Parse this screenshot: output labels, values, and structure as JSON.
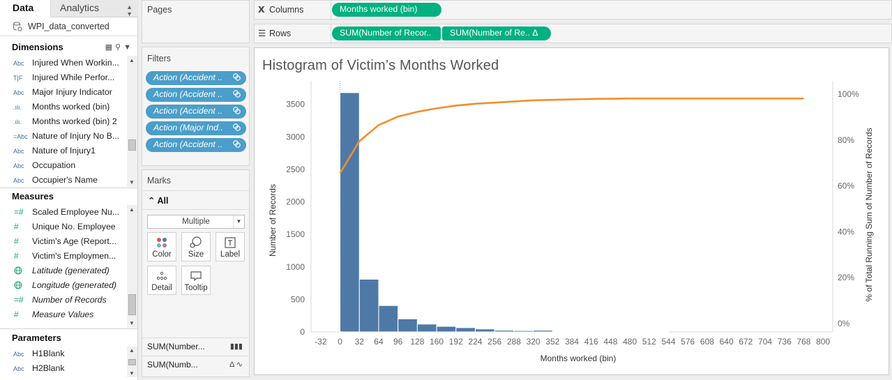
{
  "tabs": {
    "data": "Data",
    "analytics": "Analytics"
  },
  "datasource": "WPI_data_converted",
  "dimensions": {
    "title": "Dimensions",
    "items": [
      {
        "type": "Abc",
        "label": "Injured When Workin..."
      },
      {
        "type": "T|F",
        "label": "Injured While Perfor..."
      },
      {
        "type": "Abc",
        "label": "Major Injury Indicator"
      },
      {
        "type": ".ılı.",
        "label": "Months worked (bin)"
      },
      {
        "type": ".ılı.",
        "label": "Months worked (bin) 2"
      },
      {
        "type": "=Abc",
        "label": "Nature of Injury No B..."
      },
      {
        "type": "Abc",
        "label": "Nature of Injury1"
      },
      {
        "type": "Abc",
        "label": "Occupation"
      },
      {
        "type": "Abc",
        "label": "Occupier's Name"
      }
    ]
  },
  "measures": {
    "title": "Measures",
    "items": [
      {
        "type": "=#",
        "label": "Scaled Employee Nu..."
      },
      {
        "type": "#",
        "label": "Unique No. Employee"
      },
      {
        "type": "#",
        "label": "Victim's Age (Report..."
      },
      {
        "type": "#",
        "label": "Victim's Employmen..."
      },
      {
        "type": "globe",
        "label": "Latitude (generated)"
      },
      {
        "type": "globe",
        "label": "Longitude (generated)"
      },
      {
        "type": "=#",
        "label": "Number of Records"
      },
      {
        "type": "#",
        "label": "Measure Values"
      }
    ]
  },
  "parameters": {
    "title": "Parameters",
    "items": [
      {
        "type": "Abc",
        "label": "H1Blank"
      },
      {
        "type": "Abc",
        "label": "H2Blank"
      }
    ]
  },
  "pages": {
    "title": "Pages"
  },
  "filters": {
    "title": "Filters",
    "pills": [
      "Action (Accident ..",
      "Action (Accident ..",
      "Action (Accident ..",
      "Action (Major Ind..",
      "Action (Accident .."
    ]
  },
  "marks": {
    "title": "Marks",
    "all_label": "All",
    "mark_type": "Multiple",
    "buttons": {
      "color": "Color",
      "size": "Size",
      "label": "Label",
      "detail": "Detail",
      "tooltip": "Tooltip"
    },
    "shelves": [
      "SUM(Number...",
      "SUM(Numb..."
    ]
  },
  "columns": {
    "label": "Columns",
    "pills": [
      "Months worked (bin)"
    ]
  },
  "rows": {
    "label": "Rows",
    "pills": [
      "SUM(Number of Recor..",
      "SUM(Number of Re.. Δ"
    ]
  },
  "chart_data": {
    "type": "bar",
    "title": "Histogram of Victim’s Months Worked",
    "xlabel": "Months worked (bin)",
    "ylabel": "Number of Records",
    "y2label": "% of Total Running Sum of Number of Records",
    "bin_size": 32,
    "x_ticks": [
      -32,
      0,
      32,
      64,
      96,
      128,
      160,
      192,
      224,
      256,
      288,
      320,
      352,
      384,
      416,
      448,
      480,
      512,
      544,
      576,
      608,
      640,
      672,
      704,
      736,
      768,
      800
    ],
    "y_ticks": [
      0,
      500,
      1000,
      1500,
      2000,
      2500,
      3000,
      3500
    ],
    "y2_ticks": [
      "0%",
      "20%",
      "40%",
      "60%",
      "80%",
      "100%"
    ],
    "xlim": [
      -48,
      816
    ],
    "ylim": [
      0,
      3700
    ],
    "bars": [
      {
        "bin": 0,
        "value": 3680
      },
      {
        "bin": 32,
        "value": 810
      },
      {
        "bin": 64,
        "value": 405
      },
      {
        "bin": 96,
        "value": 200
      },
      {
        "bin": 128,
        "value": 120
      },
      {
        "bin": 160,
        "value": 85
      },
      {
        "bin": 192,
        "value": 65
      },
      {
        "bin": 224,
        "value": 45
      },
      {
        "bin": 256,
        "value": 25
      },
      {
        "bin": 288,
        "value": 20
      },
      {
        "bin": 320,
        "value": 25
      },
      {
        "bin": 352,
        "value": 10
      },
      {
        "bin": 384,
        "value": 5
      },
      {
        "bin": 416,
        "value": 8
      },
      {
        "bin": 448,
        "value": 4
      },
      {
        "bin": 480,
        "value": 3
      },
      {
        "bin": 512,
        "value": 2
      }
    ],
    "running_pct": {
      "x": [
        0,
        32,
        64,
        96,
        128,
        160,
        192,
        224,
        256,
        288,
        320,
        352,
        384,
        416,
        448,
        480,
        512,
        544,
        576,
        608,
        640,
        672,
        704,
        736,
        768
      ],
      "values": [
        65.5,
        79.5,
        86.5,
        90.2,
        92.3,
        93.8,
        95.0,
        95.8,
        96.3,
        96.8,
        97.3,
        97.5,
        97.7,
        97.9,
        98.0,
        98.1,
        98.1,
        98.1,
        98.1,
        98.1,
        98.1,
        98.1,
        98.1,
        98.1,
        98.1
      ]
    },
    "colors": {
      "bar": "#4e79a7",
      "line": "#f28e2b"
    }
  }
}
